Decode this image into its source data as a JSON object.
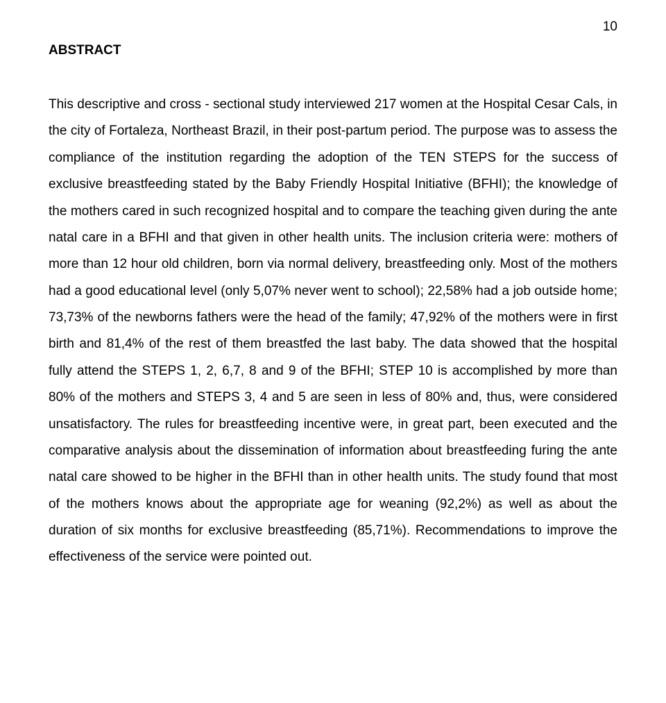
{
  "page": {
    "number": "10",
    "title": "ABSTRACT",
    "abstract_text": "This descriptive and cross - sectional study interviewed 217 women at the Hospital Cesar Cals, in the city of Fortaleza, Northeast Brazil, in their post-partum period. The purpose was to assess the compliance of the institution regarding the adoption of the TEN STEPS for the success of exclusive breastfeeding stated by the Baby Friendly Hospital Initiative (BFHI); the knowledge of the mothers cared in such recognized hospital and to compare the teaching given during the ante natal care in a BFHI and that given in other health units. The inclusion criteria were: mothers of more than 12 hour old children, born via normal delivery, breastfeeding only. Most of the mothers had a good educational level (only 5,07% never went to school); 22,58% had a job outside home; 73,73% of the newborns fathers were the head of the family; 47,92% of the mothers were in first birth and 81,4% of the rest of them breastfed the last baby. The data showed that the hospital fully attend the STEPS 1, 2, 6,7, 8 and 9 of the BFHI; STEP 10 is accomplished by more than 80% of the mothers and STEPS 3, 4 and 5 are seen in less of 80% and, thus, were considered unsatisfactory. The rules for breastfeeding incentive were, in great part, been executed and the comparative analysis about the dissemination of information about breastfeeding furing the ante natal care showed to be higher in the BFHI than in other health units. The study found that most of the mothers knows about the appropriate age for weaning (92,2%) as well as about the duration of six months for exclusive breastfeeding (85,71%). Recommendations to improve the effectiveness of the service were pointed out."
  }
}
